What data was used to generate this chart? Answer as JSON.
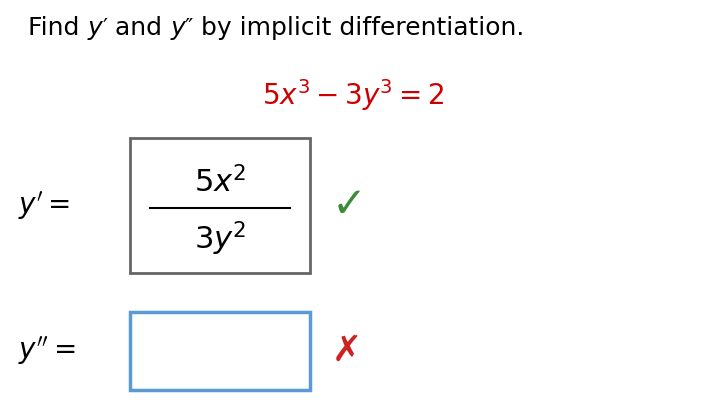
{
  "title_part1": "Find ",
  "title_italic1": "y",
  "title_prime": "′",
  "title_and": " and ",
  "title_italic2": "y",
  "title_dprime": "″",
  "title_part2": " by implicit differentiation.",
  "equation": "$5x^3 - 3y^3 = 2$",
  "equation_color": "#cc0000",
  "yprime_label": "$y' =$",
  "yprime_formula_num": "$5x^2$",
  "yprime_formula_den": "$3y^2$",
  "ydprime_label": "$y'' =$",
  "box1_color": "#666666",
  "box2_color": "#5b9bd5",
  "check_color": "#3a8c3a",
  "cross_color": "#cc2222",
  "bg_color": "#ffffff",
  "title_fontsize": 18,
  "eq_fontsize": 20,
  "label_fontsize": 20,
  "formula_fontsize": 22,
  "fig_width": 7.07,
  "fig_height": 4.18,
  "dpi": 100
}
